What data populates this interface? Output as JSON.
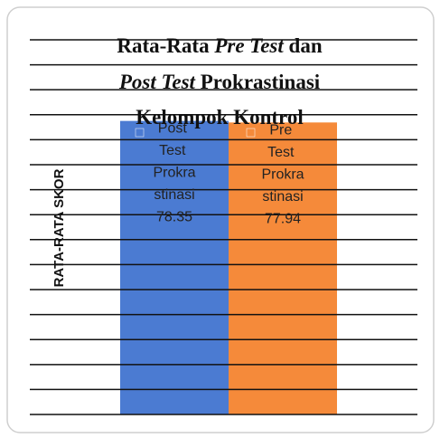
{
  "chart_data": {
    "type": "bar",
    "title_lines": [
      [
        {
          "text": "Rata-Rata "
        },
        {
          "text": "Pre Test",
          "italic": true
        },
        {
          "text": " dan"
        }
      ],
      [
        {
          "text": "Post Test",
          "italic": true
        },
        {
          "text": " Prokrastinasi"
        }
      ],
      [
        {
          "text": "Kelompok Kontrol"
        }
      ]
    ],
    "y_label": "RATA-RATA SKOR",
    "series": [
      {
        "name": "Post Test Prokrastinasi",
        "color": "#4b7bd2",
        "values": [
          78.35
        ]
      },
      {
        "name": "Pre Test Prokrastinasi",
        "color": "#f58a3a",
        "values": [
          77.94
        ]
      }
    ],
    "ylim": [
      0,
      100
    ],
    "yticks": [
      0,
      6.67,
      13.33,
      20,
      26.67,
      33.33,
      40,
      46.67,
      53.33,
      60,
      66.67,
      73.33,
      80,
      86.67,
      93.33,
      100
    ],
    "grid": true
  }
}
